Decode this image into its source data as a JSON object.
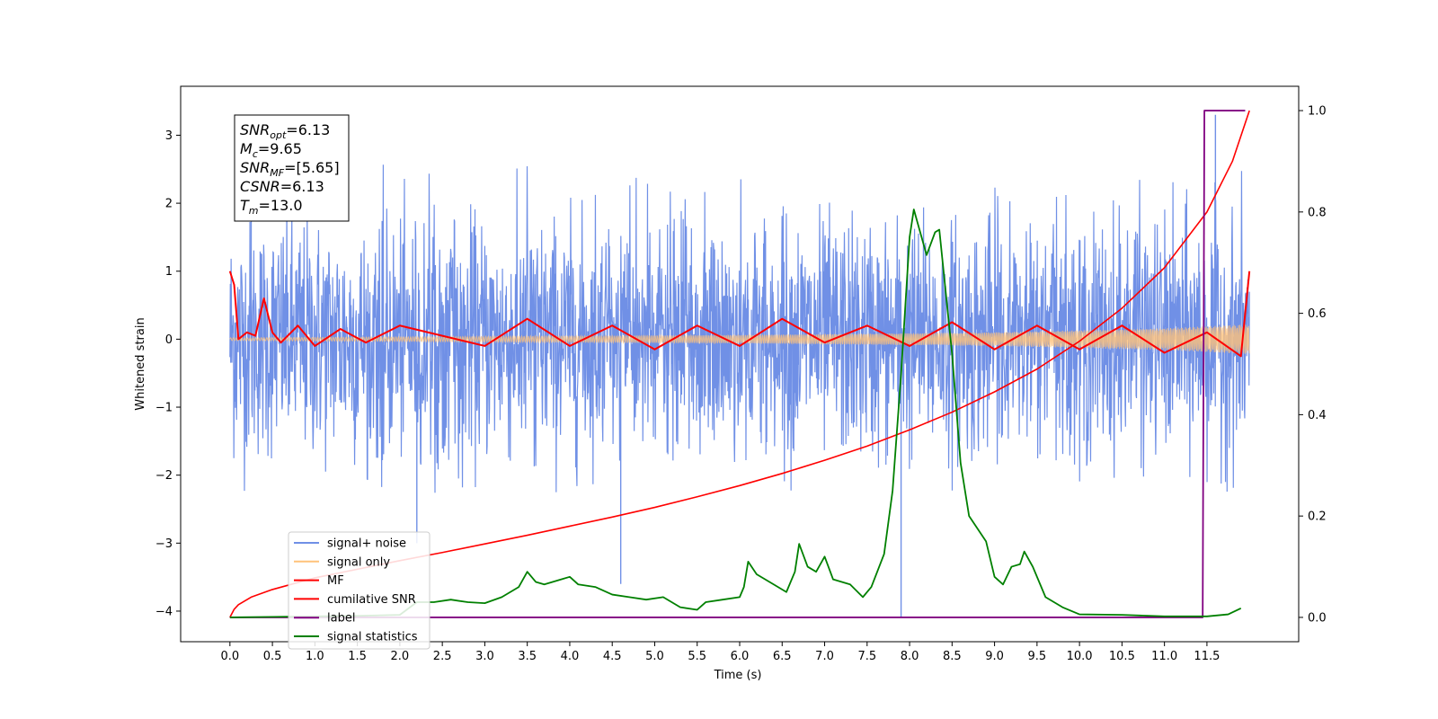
{
  "chart_data": {
    "type": "line",
    "xlabel": "Time (s)",
    "ylabel": "Whitened strain",
    "x_range": [
      -0.58,
      12.58
    ],
    "y_left_range": [
      -4.45,
      3.72
    ],
    "y_right_range": [
      -0.048,
      1.048
    ],
    "x_ticks": [
      "0.0",
      "0.5",
      "1.0",
      "1.5",
      "2.0",
      "2.5",
      "3.0",
      "3.5",
      "4.0",
      "4.5",
      "5.0",
      "5.5",
      "6.0",
      "6.5",
      "7.0",
      "7.5",
      "8.0",
      "8.5",
      "9.0",
      "9.5",
      "10.0",
      "10.5",
      "11.0",
      "11.5"
    ],
    "y_left_ticks": [
      3,
      2,
      1,
      0,
      -1,
      -2,
      -3,
      -4
    ],
    "y_right_ticks": [
      "0.0",
      "0.2",
      "0.4",
      "0.6",
      "0.8",
      "1.0"
    ],
    "grid": false,
    "legend_position": "lower-left",
    "annotation": [
      {
        "sym": "SNR",
        "sub": "opt",
        "value": "=6.13"
      },
      {
        "sym": "M",
        "sub": "c",
        "value": "=9.65"
      },
      {
        "sym": "SNR",
        "sub": "MF",
        "value": "=[5.65]"
      },
      {
        "sym": "CSNR",
        "sub": "",
        "value": "=6.13"
      },
      {
        "sym": "T",
        "sub": "m",
        "value": "=13.0"
      }
    ],
    "series": [
      {
        "name": "signal+ noise",
        "color": "#7090e6",
        "axis": "left",
        "description_values": {
          "band_min": -2.3,
          "band_max": 2.6,
          "spikes": [
            [
              0.25,
              2.9
            ],
            [
              2.2,
              -3.0
            ],
            [
              4.6,
              -3.6
            ],
            [
              7.9,
              -4.1
            ],
            [
              11.6,
              3.3
            ]
          ]
        }
      },
      {
        "name": "signal only",
        "color": "#ffc27a",
        "axis": "left",
        "envelope": [
          [
            0.0,
            0.02
          ],
          [
            3.0,
            0.04
          ],
          [
            6.0,
            0.06
          ],
          [
            9.0,
            0.1
          ],
          [
            11.0,
            0.16
          ],
          [
            12.0,
            0.22
          ]
        ]
      },
      {
        "name": "MF",
        "color": "#ff0000",
        "axis": "left",
        "points": [
          [
            0.0,
            1.0
          ],
          [
            0.05,
            0.8
          ],
          [
            0.1,
            0.0
          ],
          [
            0.2,
            0.1
          ],
          [
            0.3,
            0.05
          ],
          [
            0.4,
            0.6
          ],
          [
            0.5,
            0.1
          ],
          [
            0.6,
            -0.05
          ],
          [
            0.8,
            0.2
          ],
          [
            1.0,
            -0.1
          ],
          [
            1.3,
            0.15
          ],
          [
            1.6,
            -0.05
          ],
          [
            2.0,
            0.2
          ],
          [
            2.5,
            0.05
          ],
          [
            3.0,
            -0.1
          ],
          [
            3.5,
            0.3
          ],
          [
            4.0,
            -0.1
          ],
          [
            4.5,
            0.2
          ],
          [
            5.0,
            -0.15
          ],
          [
            5.5,
            0.2
          ],
          [
            6.0,
            -0.1
          ],
          [
            6.5,
            0.3
          ],
          [
            7.0,
            -0.05
          ],
          [
            7.5,
            0.2
          ],
          [
            8.0,
            -0.1
          ],
          [
            8.5,
            0.25
          ],
          [
            9.0,
            -0.15
          ],
          [
            9.5,
            0.2
          ],
          [
            10.0,
            -0.15
          ],
          [
            10.5,
            0.2
          ],
          [
            11.0,
            -0.2
          ],
          [
            11.5,
            0.1
          ],
          [
            11.9,
            -0.25
          ],
          [
            12.0,
            1.0
          ]
        ]
      },
      {
        "name": "cumilative SNR",
        "color": "#ff0000",
        "axis": "right",
        "points": [
          [
            0.0,
            0.0
          ],
          [
            0.05,
            0.016
          ],
          [
            0.1,
            0.025
          ],
          [
            0.25,
            0.04
          ],
          [
            0.5,
            0.055
          ],
          [
            1.0,
            0.078
          ],
          [
            1.5,
            0.095
          ],
          [
            2.0,
            0.112
          ],
          [
            2.5,
            0.128
          ],
          [
            3.0,
            0.145
          ],
          [
            3.5,
            0.162
          ],
          [
            4.0,
            0.18
          ],
          [
            4.5,
            0.198
          ],
          [
            5.0,
            0.217
          ],
          [
            5.5,
            0.238
          ],
          [
            6.0,
            0.26
          ],
          [
            6.5,
            0.284
          ],
          [
            7.0,
            0.31
          ],
          [
            7.5,
            0.338
          ],
          [
            8.0,
            0.37
          ],
          [
            8.5,
            0.405
          ],
          [
            9.0,
            0.445
          ],
          [
            9.5,
            0.49
          ],
          [
            10.0,
            0.545
          ],
          [
            10.5,
            0.61
          ],
          [
            11.0,
            0.69
          ],
          [
            11.5,
            0.8
          ],
          [
            11.8,
            0.9
          ],
          [
            12.0,
            1.0
          ]
        ]
      },
      {
        "name": "label",
        "color": "#800080",
        "axis": "right",
        "points": [
          [
            0.0,
            0.0
          ],
          [
            11.45,
            0.0
          ],
          [
            11.47,
            1.0
          ],
          [
            11.95,
            1.0
          ]
        ]
      },
      {
        "name": "signal statistics",
        "color": "#008000",
        "axis": "right",
        "points": [
          [
            0.0,
            0.0
          ],
          [
            0.5,
            0.001
          ],
          [
            1.0,
            0.002
          ],
          [
            1.5,
            0.003
          ],
          [
            2.0,
            0.005
          ],
          [
            2.2,
            0.03
          ],
          [
            2.4,
            0.03
          ],
          [
            2.6,
            0.035
          ],
          [
            2.8,
            0.03
          ],
          [
            3.0,
            0.028
          ],
          [
            3.2,
            0.04
          ],
          [
            3.4,
            0.06
          ],
          [
            3.5,
            0.09
          ],
          [
            3.6,
            0.07
          ],
          [
            3.7,
            0.065
          ],
          [
            3.9,
            0.075
          ],
          [
            4.0,
            0.08
          ],
          [
            4.1,
            0.065
          ],
          [
            4.3,
            0.06
          ],
          [
            4.5,
            0.045
          ],
          [
            4.7,
            0.04
          ],
          [
            4.9,
            0.035
          ],
          [
            5.1,
            0.04
          ],
          [
            5.3,
            0.02
          ],
          [
            5.5,
            0.015
          ],
          [
            5.6,
            0.03
          ],
          [
            5.8,
            0.035
          ],
          [
            6.0,
            0.04
          ],
          [
            6.05,
            0.06
          ],
          [
            6.1,
            0.11
          ],
          [
            6.2,
            0.085
          ],
          [
            6.4,
            0.065
          ],
          [
            6.55,
            0.05
          ],
          [
            6.65,
            0.09
          ],
          [
            6.7,
            0.145
          ],
          [
            6.8,
            0.1
          ],
          [
            6.9,
            0.09
          ],
          [
            7.0,
            0.12
          ],
          [
            7.1,
            0.075
          ],
          [
            7.3,
            0.065
          ],
          [
            7.45,
            0.04
          ],
          [
            7.55,
            0.06
          ],
          [
            7.7,
            0.125
          ],
          [
            7.8,
            0.25
          ],
          [
            7.9,
            0.48
          ],
          [
            8.0,
            0.75
          ],
          [
            8.05,
            0.805
          ],
          [
            8.2,
            0.715
          ],
          [
            8.3,
            0.76
          ],
          [
            8.35,
            0.765
          ],
          [
            8.5,
            0.52
          ],
          [
            8.6,
            0.305
          ],
          [
            8.7,
            0.2
          ],
          [
            8.9,
            0.15
          ],
          [
            9.0,
            0.08
          ],
          [
            9.1,
            0.065
          ],
          [
            9.2,
            0.1
          ],
          [
            9.3,
            0.105
          ],
          [
            9.35,
            0.13
          ],
          [
            9.45,
            0.1
          ],
          [
            9.6,
            0.04
          ],
          [
            9.8,
            0.02
          ],
          [
            10.0,
            0.006
          ],
          [
            10.5,
            0.005
          ],
          [
            11.0,
            0.002
          ],
          [
            11.5,
            0.002
          ],
          [
            11.75,
            0.006
          ],
          [
            11.9,
            0.018
          ]
        ]
      }
    ]
  }
}
